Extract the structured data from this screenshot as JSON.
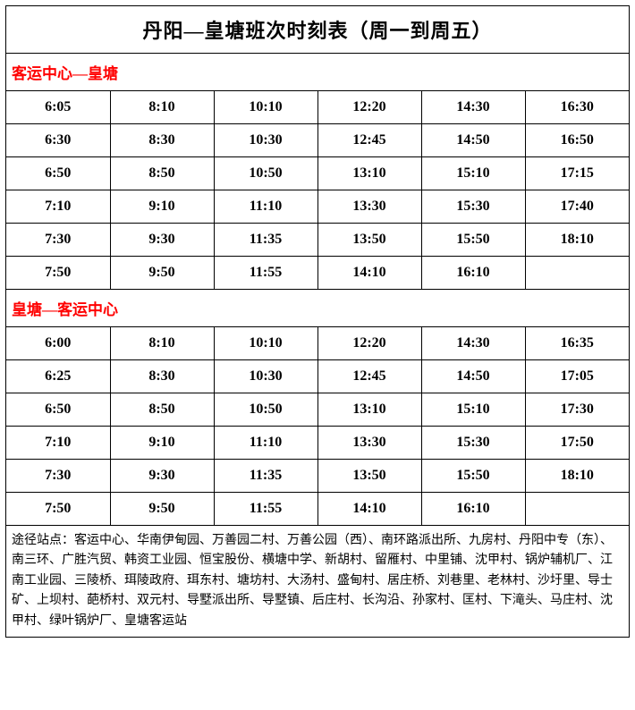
{
  "title": "丹阳—皇塘班次时刻表（周一到周五）",
  "section1": {
    "header": "客运中心—皇塘",
    "rows": [
      [
        "6:05",
        "8:10",
        "10:10",
        "12:20",
        "14:30",
        "16:30"
      ],
      [
        "6:30",
        "8:30",
        "10:30",
        "12:45",
        "14:50",
        "16:50"
      ],
      [
        "6:50",
        "8:50",
        "10:50",
        "13:10",
        "15:10",
        "17:15"
      ],
      [
        "7:10",
        "9:10",
        "11:10",
        "13:30",
        "15:30",
        "17:40"
      ],
      [
        "7:30",
        "9:30",
        "11:35",
        "13:50",
        "15:50",
        "18:10"
      ],
      [
        "7:50",
        "9:50",
        "11:55",
        "14:10",
        "16:10",
        ""
      ]
    ]
  },
  "section2": {
    "header": "皇塘—客运中心",
    "rows": [
      [
        "6:00",
        "8:10",
        "10:10",
        "12:20",
        "14:30",
        "16:35"
      ],
      [
        "6:25",
        "8:30",
        "10:30",
        "12:45",
        "14:50",
        "17:05"
      ],
      [
        "6:50",
        "8:50",
        "10:50",
        "13:10",
        "15:10",
        "17:30"
      ],
      [
        "7:10",
        "9:10",
        "11:10",
        "13:30",
        "15:30",
        "17:50"
      ],
      [
        "7:30",
        "9:30",
        "11:35",
        "13:50",
        "15:50",
        "18:10"
      ],
      [
        "7:50",
        "9:50",
        "11:55",
        "14:10",
        "16:10",
        ""
      ]
    ]
  },
  "footer": "途径站点：客运中心、华南伊甸园、万善园二村、万善公园（西）、南环路派出所、九房村、丹阳中专（东）、南三环、广胜汽贸、韩资工业园、恒宝股份、横塘中学、新胡村、留雁村、中里铺、沈甲村、锅炉辅机厂、江南工业园、三陵桥、珥陵政府、珥东村、塘坊村、大汤村、盛甸村、居庄桥、刘巷里、老林村、沙圩里、导士矿、上坝村、葩桥村、双元村、导墅派出所、导墅镇、后庄村、长沟沿、孙家村、匡村、下滝头、马庄村、沈甲村、绿叶锅炉厂、皇塘客运站",
  "colors": {
    "header_text": "#ff0000",
    "border": "#000000",
    "background": "#ffffff"
  },
  "table_style": {
    "columns": 6,
    "cell_font_size": 16,
    "cell_font_weight": "bold",
    "title_font_size": 22,
    "section_header_font_size": 17,
    "footer_font_size": 14
  }
}
